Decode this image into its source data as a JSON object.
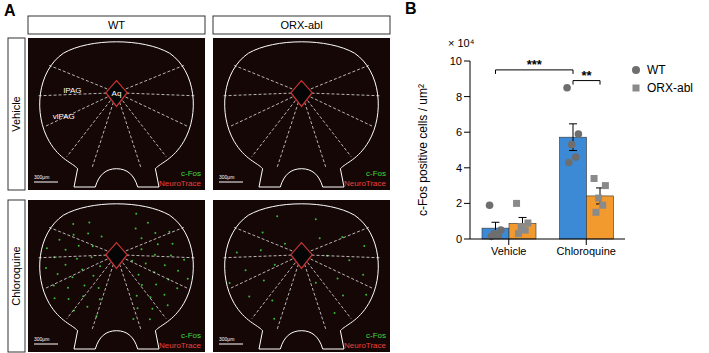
{
  "panel_a": {
    "label": "A",
    "columns": [
      "WT",
      "ORX-abl"
    ],
    "rows": [
      "Vehicle",
      "Chloroquine"
    ],
    "region_labels": {
      "aqueduct": "Aq",
      "lateral": "lPAG",
      "ventrolateral": "vlPAG"
    },
    "stains": [
      {
        "name": "c-Fos",
        "color": "#3ddc3d"
      },
      {
        "name": "NeuroTrace",
        "color": "#e8413a"
      }
    ],
    "scale_bar": "300μm"
  },
  "chart_data": {
    "type": "bar",
    "panel_label": "B",
    "y_label": "c-Fos positive cells / um²",
    "y_multiplier": "× 10⁴",
    "categories": [
      "Vehicle",
      "Chloroquine"
    ],
    "series": [
      {
        "name": "WT",
        "color": "#3c8ad6",
        "marker": "circle",
        "values": [
          0.61,
          5.72
        ],
        "errors": [
          0.33,
          0.75
        ],
        "points": [
          [
            1.9,
            0.5,
            0.3,
            0.2,
            0.15
          ],
          [
            8.5,
            5.9,
            5.3,
            4.6,
            4.3
          ]
        ]
      },
      {
        "name": "ORX-abl",
        "color": "#f39a2e",
        "marker": "square",
        "values": [
          0.88,
          2.42
        ],
        "errors": [
          0.33,
          0.45
        ],
        "points": [
          [
            2.0,
            0.9,
            0.7,
            0.5,
            0.3
          ],
          [
            3.4,
            3.0,
            2.3,
            1.9,
            1.5
          ]
        ]
      }
    ],
    "ylim": [
      0,
      10
    ],
    "yticks": [
      0,
      2,
      4,
      6,
      8,
      10
    ],
    "grid": false,
    "legend": "upper right",
    "annotations": [
      {
        "text": "**",
        "between": [
          {
            "category": "Chloroquine",
            "series": "WT"
          },
          {
            "category": "Chloroquine",
            "series": "ORX-abl"
          }
        ]
      },
      {
        "text": "***",
        "between": [
          {
            "category": "Vehicle",
            "series": "WT"
          },
          {
            "category": "Chloroquine",
            "series": "WT"
          }
        ]
      }
    ]
  }
}
